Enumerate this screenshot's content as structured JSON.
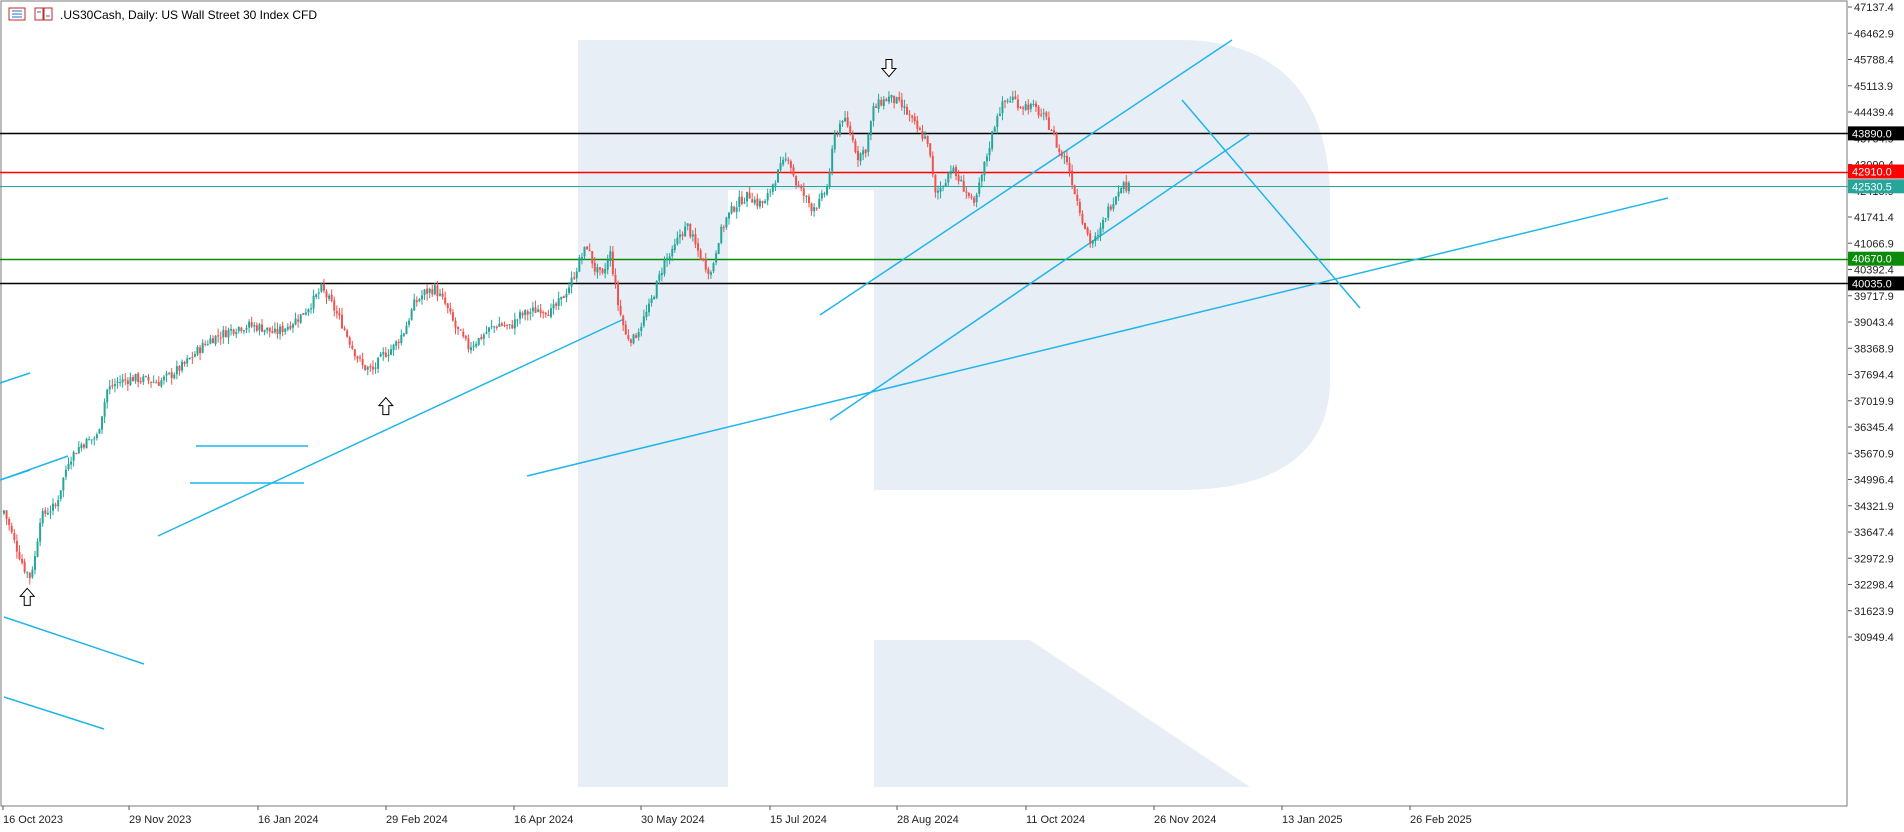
{
  "header": {
    "title": ".US30Cash, Daily:  US Wall Street 30 Index CFD"
  },
  "colors": {
    "bull": "#26a69a",
    "bear": "#ef5350",
    "trend": "#1fb5ea",
    "support_green": "#0b8a0b",
    "resistance_red": "#ff0000",
    "level_black": "#000000",
    "current_price": "#26a69a",
    "watermark": "#e8eef5"
  },
  "chart_data": {
    "type": "candlestick",
    "title": ".US30Cash, Daily:  US Wall Street 30 Index CFD",
    "ylim": [
      30400,
      47300
    ],
    "y_ticks": [
      "47137.4",
      "46462.9",
      "45788.4",
      "45113.9",
      "44439.4",
      "43764.9",
      "43090.4",
      "42415.9",
      "41741.4",
      "41066.9",
      "40392.4",
      "39717.9",
      "39043.4",
      "38368.9",
      "37694.4",
      "37019.9",
      "36345.4",
      "35670.9",
      "34996.4",
      "34321.9",
      "33647.4",
      "32972.9",
      "32298.4",
      "31623.9",
      "30949.4"
    ],
    "x_ticks": [
      "16 Oct 2023",
      "29 Nov 2023",
      "16 Jan 2024",
      "29 Feb 2024",
      "16 Apr 2024",
      "30 May 2024",
      "15 Jul 2024",
      "28 Aug 2024",
      "11 Oct 2024",
      "26 Nov 2024",
      "13 Jan 2025",
      "26 Feb 2025"
    ],
    "levels": [
      {
        "value": 43890.0,
        "label": "43890.0",
        "color": "#000000"
      },
      {
        "value": 42910.0,
        "label": "42910.0",
        "color": "#ff0000"
      },
      {
        "value": 42530.5,
        "label": "42530.5",
        "color": "#26a69a"
      },
      {
        "value": 40670.0,
        "label": "40670.0",
        "color": "#0b8a0b"
      },
      {
        "value": 40035.0,
        "label": "40035.0",
        "color": "#000000"
      }
    ],
    "closes": [
      [
        0,
        34200
      ],
      [
        4,
        33400
      ],
      [
        8,
        32700
      ],
      [
        10,
        32500
      ],
      [
        12,
        33000
      ],
      [
        14,
        34000
      ],
      [
        17,
        34200
      ],
      [
        20,
        34300
      ],
      [
        25,
        35500
      ],
      [
        30,
        35900
      ],
      [
        36,
        36100
      ],
      [
        40,
        37300
      ],
      [
        44,
        37500
      ],
      [
        50,
        37600
      ],
      [
        55,
        37550
      ],
      [
        60,
        37500
      ],
      [
        65,
        37700
      ],
      [
        70,
        37950
      ],
      [
        75,
        38300
      ],
      [
        80,
        38600
      ],
      [
        85,
        38750
      ],
      [
        90,
        38900
      ],
      [
        95,
        38950
      ],
      [
        100,
        38900
      ],
      [
        105,
        38750
      ],
      [
        110,
        38950
      ],
      [
        115,
        39200
      ],
      [
        120,
        39600
      ],
      [
        123,
        39900
      ],
      [
        127,
        39500
      ],
      [
        131,
        39000
      ],
      [
        135,
        38400
      ],
      [
        139,
        37900
      ],
      [
        143,
        37800
      ],
      [
        147,
        38200
      ],
      [
        151,
        38400
      ],
      [
        155,
        38800
      ],
      [
        159,
        39500
      ],
      [
        163,
        39800
      ],
      [
        167,
        39900
      ],
      [
        171,
        39500
      ],
      [
        175,
        38900
      ],
      [
        180,
        38400
      ],
      [
        184,
        38600
      ],
      [
        188,
        38850
      ],
      [
        192,
        39000
      ],
      [
        196,
        38900
      ],
      [
        200,
        39200
      ],
      [
        204,
        39300
      ],
      [
        208,
        39400
      ],
      [
        212,
        39300
      ],
      [
        216,
        39600
      ],
      [
        220,
        40100
      ],
      [
        223,
        40600
      ],
      [
        226,
        41000
      ],
      [
        229,
        40400
      ],
      [
        232,
        40200
      ],
      [
        235,
        40800
      ],
      [
        238,
        39500
      ],
      [
        241,
        38700
      ],
      [
        244,
        38600
      ],
      [
        247,
        39000
      ],
      [
        250,
        39400
      ],
      [
        253,
        40000
      ],
      [
        256,
        40600
      ],
      [
        259,
        40800
      ],
      [
        262,
        41300
      ],
      [
        265,
        41500
      ],
      [
        268,
        41000
      ],
      [
        271,
        40600
      ],
      [
        274,
        40300
      ],
      [
        277,
        41200
      ],
      [
        280,
        41700
      ],
      [
        283,
        42000
      ],
      [
        286,
        42200
      ],
      [
        289,
        42300
      ],
      [
        292,
        42100
      ],
      [
        295,
        42100
      ],
      [
        298,
        42600
      ],
      [
        301,
        43000
      ],
      [
        304,
        43300
      ],
      [
        307,
        42600
      ],
      [
        310,
        42300
      ],
      [
        313,
        42000
      ],
      [
        316,
        42100
      ],
      [
        319,
        42500
      ],
      [
        322,
        43800
      ],
      [
        325,
        44300
      ],
      [
        328,
        43900
      ],
      [
        331,
        43300
      ],
      [
        334,
        43500
      ],
      [
        337,
        44500
      ],
      [
        340,
        44700
      ],
      [
        343,
        44800
      ],
      [
        346,
        44700
      ],
      [
        349,
        44500
      ],
      [
        352,
        44200
      ],
      [
        355,
        43900
      ],
      [
        358,
        43700
      ],
      [
        361,
        42300
      ],
      [
        364,
        42600
      ],
      [
        367,
        43000
      ],
      [
        370,
        42700
      ],
      [
        373,
        42400
      ],
      [
        376,
        42000
      ],
      [
        379,
        42800
      ],
      [
        382,
        43600
      ],
      [
        385,
        44400
      ],
      [
        388,
        44700
      ],
      [
        391,
        44800
      ],
      [
        394,
        44600
      ],
      [
        397,
        44600
      ],
      [
        400,
        44500
      ],
      [
        403,
        44300
      ],
      [
        406,
        44000
      ],
      [
        409,
        43400
      ],
      [
        412,
        43200
      ],
      [
        415,
        42400
      ],
      [
        418,
        41700
      ],
      [
        421,
        41100
      ],
      [
        424,
        41200
      ],
      [
        427,
        41800
      ],
      [
        430,
        42200
      ],
      [
        433,
        42600
      ],
      [
        436,
        42500
      ]
    ],
    "annotations": [
      {
        "type": "up-arrow",
        "date_index": 9,
        "price": 32200
      },
      {
        "type": "up-arrow",
        "date_index": 148,
        "price": 37100
      },
      {
        "type": "down-arrow",
        "date_index": 343,
        "price": 45350
      }
    ]
  }
}
